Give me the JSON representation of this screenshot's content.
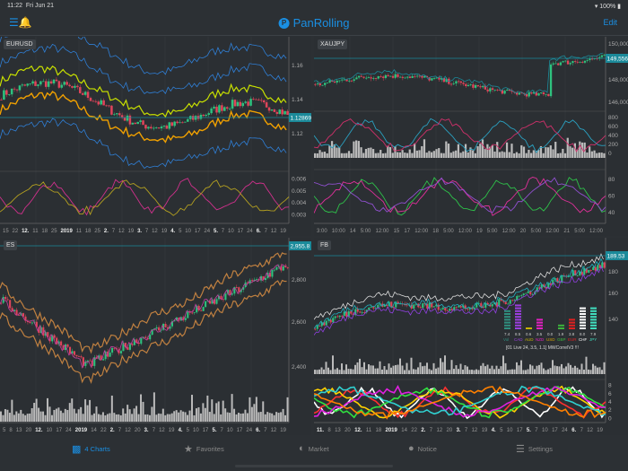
{
  "status": {
    "time": "11:22",
    "date": "Fri Jun 21",
    "battery": "100%"
  },
  "nav": {
    "logo": "PanRolling",
    "edit": "Edit"
  },
  "colors": {
    "accent": "#1a8fe3",
    "price_tag": "#1b8a9a",
    "up": "#2ec27e",
    "down": "#e0445a"
  },
  "panels": [
    {
      "symbol": "EURUSD",
      "price": "1.12869",
      "axis": [
        "1.16",
        "1.14",
        "1.12"
      ],
      "osc_axis": [
        "0.006",
        "0.005",
        "0.004",
        "0.003"
      ],
      "dates": [
        "15",
        "22",
        "12.",
        "11",
        "18",
        "25",
        "2019",
        "11",
        "18",
        "25",
        "2.",
        "7",
        "12",
        "19",
        "3.",
        "7",
        "12",
        "19",
        "4.",
        "5",
        "10",
        "17",
        "24",
        "5.",
        "7",
        "10",
        "17",
        "24",
        "6.",
        "7",
        "12",
        "19"
      ]
    },
    {
      "symbol": "XAUJPY",
      "price": "149,556",
      "axis": [
        "150,000",
        "148,000",
        "146,000"
      ],
      "osc_axis": [
        "800",
        "600",
        "400",
        "200",
        "0"
      ],
      "osc2_axis": [
        "80",
        "60",
        "40"
      ],
      "dates": [
        "3:00",
        "10:00",
        "14",
        "5:00",
        "12:00",
        "15",
        "17",
        "12:00",
        "18",
        "5:00",
        "12:00",
        "19",
        "5:00",
        "12:00",
        "20",
        "5:00",
        "12:00",
        "21",
        "5:00",
        "12:00"
      ]
    },
    {
      "symbol": "ES",
      "price": "2,955.8",
      "axis": [
        "2,800",
        "2,600",
        "2,400"
      ],
      "dates": [
        "5",
        "8",
        "13",
        "20",
        "12.",
        "10",
        "17",
        "24",
        "2019",
        "14",
        "22",
        "2.",
        "7",
        "12",
        "20",
        "3.",
        "7",
        "12",
        "19",
        "4.",
        "5",
        "10",
        "17",
        "5.",
        "7",
        "10",
        "17",
        "24",
        "6.",
        "7",
        "12",
        "19"
      ]
    },
    {
      "symbol": "FB",
      "price": "189.53",
      "axis": [
        "180",
        "160",
        "140"
      ],
      "osc_axis": [
        "8",
        "6",
        "4",
        "2",
        "0"
      ],
      "dates": [
        "11.",
        "8",
        "13",
        "20",
        "12.",
        "11",
        "18",
        "2019",
        "14",
        "22",
        "2.",
        "7",
        "12",
        "20",
        "3.",
        "7",
        "12",
        "19",
        "4.",
        "5",
        "10",
        "17",
        "5.",
        "7",
        "10",
        "17",
        "24",
        "6.",
        "7",
        "12",
        "19"
      ],
      "strength": {
        "labels": [
          "Vol",
          "CAD",
          "AUD",
          "NZD",
          "USD",
          "GBP",
          "EUR",
          "CHF",
          "JPY"
        ],
        "values": [
          "7.4",
          "8.5",
          "0.6",
          "3.5",
          "0.0",
          "1.9",
          "3.8",
          "8.0",
          "7.9"
        ],
        "colors": [
          "#2f8f7f",
          "#9b3fe0",
          "#c8b400",
          "#e020c0",
          "#d4a000",
          "#3cb43c",
          "#e02020",
          "#ffffff",
          "#40e0c0"
        ],
        "caption": "[01 Live 24, 3.5, 1.1] MWCorrelV3 !!!"
      }
    }
  ],
  "tabs": [
    {
      "label": "4 Charts",
      "icon": "bar-chart-icon"
    },
    {
      "label": "Favorites",
      "icon": "star-icon"
    },
    {
      "label": "Market",
      "icon": "globe-icon"
    },
    {
      "label": "Notice",
      "icon": "chat-bubble-icon"
    },
    {
      "label": "Settings",
      "icon": "sliders-icon"
    }
  ]
}
